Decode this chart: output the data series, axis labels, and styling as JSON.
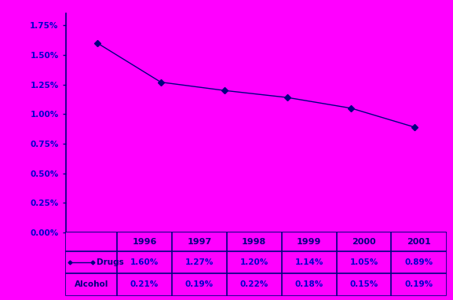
{
  "years": [
    1996,
    1997,
    1998,
    1999,
    2000,
    2001
  ],
  "drugs": [
    1.6,
    1.27,
    1.2,
    1.14,
    1.05,
    0.89
  ],
  "alcohol": [
    0.21,
    0.19,
    0.22,
    0.18,
    0.15,
    0.19
  ],
  "drugs_labels": [
    "1.60%",
    "1.27%",
    "1.20%",
    "1.14%",
    "1.05%",
    "0.89%"
  ],
  "alcohol_labels": [
    "0.21%",
    "0.19%",
    "0.22%",
    "0.18%",
    "0.15%",
    "0.19%"
  ],
  "yticks": [
    0.0,
    0.25,
    0.5,
    0.75,
    1.0,
    1.25,
    1.5,
    1.75
  ],
  "ytick_labels": [
    "0.00%",
    "0.25%",
    "0.50%",
    "0.75%",
    "1.00%",
    "1.25%",
    "1.50%",
    "1.75%"
  ],
  "ylim_pct": [
    0.0,
    1.85
  ],
  "bg_color": "#FF00FF",
  "line_color": "#000080",
  "border_color": "#000080",
  "data_text_color": "#0000CD",
  "year_text_color": "#000080",
  "label_text_color": "#000080",
  "year_row_bg": "#FF00FF",
  "data_row_bg": "#FF00FF",
  "label_col_bg": "#FF00FF",
  "ytick_color": "#0000CD"
}
